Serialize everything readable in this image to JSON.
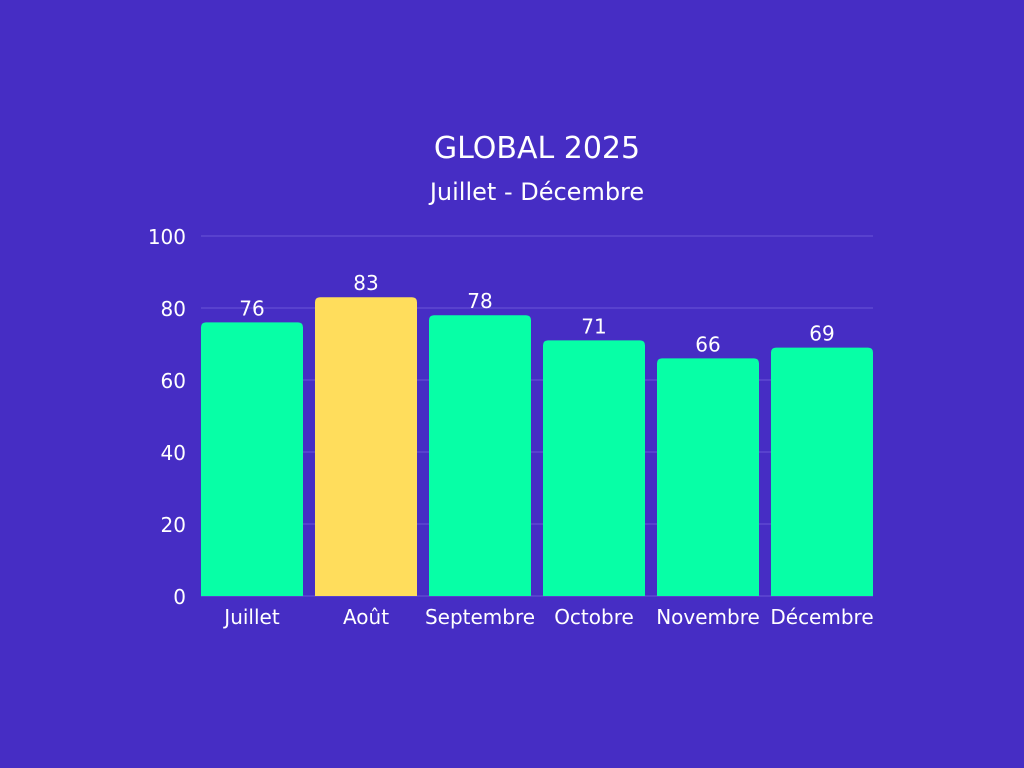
{
  "chart_data": {
    "type": "bar",
    "title": "GLOBAL 2025",
    "subtitle": "Juillet - Décembre",
    "categories": [
      "Juillet",
      "Août",
      "Septembre",
      "Octobre",
      "Novembre",
      "Décembre"
    ],
    "values": [
      76,
      83,
      78,
      71,
      66,
      69
    ],
    "highlight_index": 1,
    "ylim": [
      0,
      100
    ],
    "yticks": [
      0,
      20,
      40,
      60,
      80,
      100
    ],
    "grid": true,
    "xlabel": "",
    "ylabel": "",
    "colors": {
      "background": "#462dc4",
      "bar": "#07ffa6",
      "highlight": "#ffdd5c",
      "grid": "#6a55d8",
      "text": "#ffffff"
    }
  }
}
